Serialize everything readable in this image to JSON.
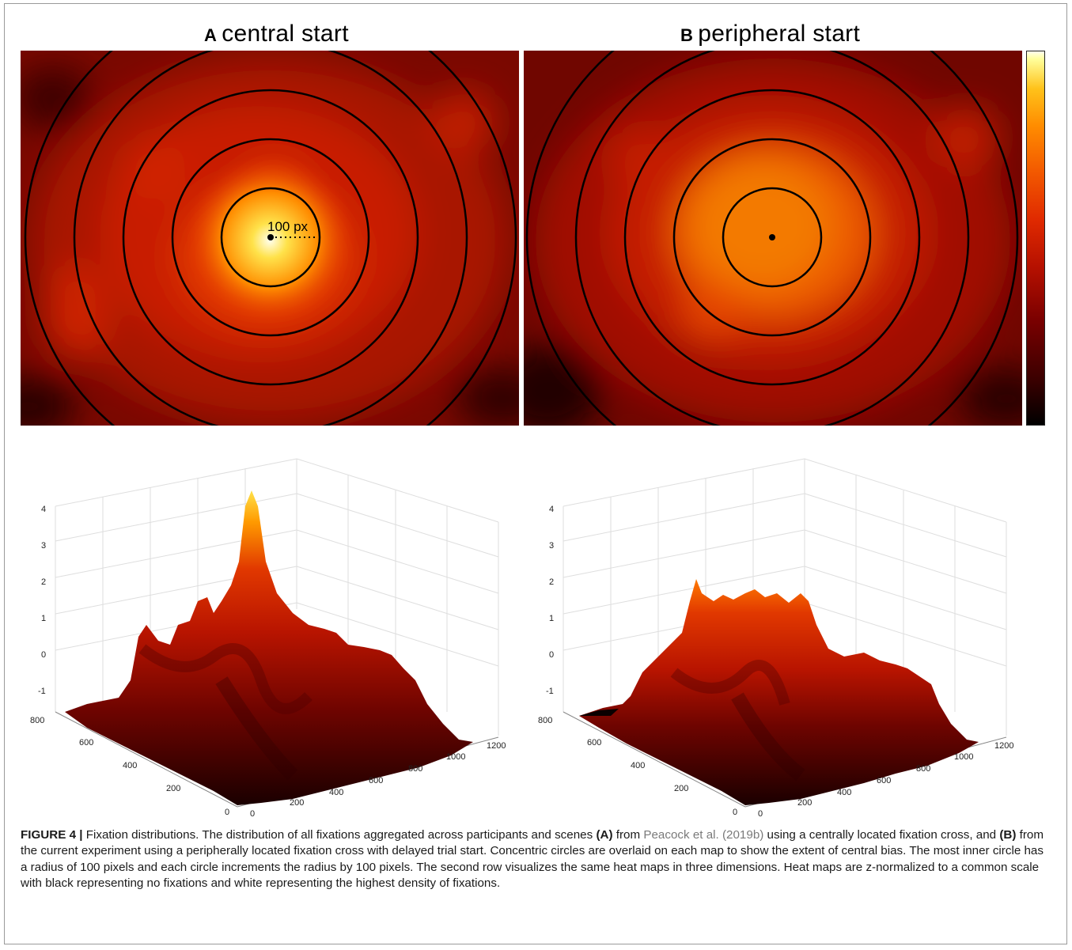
{
  "panels": [
    {
      "letter": "A",
      "title": "central start",
      "annotation": "100 px"
    },
    {
      "letter": "B",
      "title": "peripheral start"
    }
  ],
  "colors": {
    "black": "#000000",
    "dark_red": "#7a0000",
    "red": "#d01e00",
    "orange": "#ff8c00",
    "yellow": "#ffe24a",
    "white": "#ffffee"
  },
  "surface_axes": {
    "z_ticks": [
      "4",
      "3",
      "2",
      "1",
      "0",
      "-1"
    ],
    "y_ticks": [
      "800",
      "600",
      "400",
      "200",
      "0"
    ],
    "x_ticks": [
      "0",
      "200",
      "400",
      "600",
      "800",
      "1000",
      "1200"
    ]
  },
  "chart_data": [
    {
      "type": "heatmap",
      "title": "central start",
      "colorscale": "hot",
      "circle_radii_px": [
        100,
        200,
        300,
        400,
        500
      ],
      "peak": "center"
    },
    {
      "type": "heatmap",
      "title": "peripheral start",
      "colorscale": "hot",
      "circle_radii_px": [
        100,
        200,
        300,
        400,
        500
      ],
      "peak": "broad center"
    },
    {
      "type": "surface",
      "z_range": [
        -1,
        4
      ],
      "x_range": [
        0,
        1200
      ],
      "y_range": [
        0,
        800
      ],
      "peak_z": 3.4
    },
    {
      "type": "surface",
      "z_range": [
        -1,
        4
      ],
      "x_range": [
        0,
        1200
      ],
      "y_range": [
        0,
        800
      ],
      "peak_z": 1.7
    }
  ],
  "caption": {
    "figure_label": "FIGURE 4 |",
    "part1": " Fixation distributions. The distribution of all fixations aggregated across participants and scenes ",
    "a_label": "(A)",
    "part2": " from ",
    "ref": "Peacock et al. (2019b)",
    "part3": " using a centrally located fixation cross, and ",
    "b_label": "(B)",
    "part4": " from the current experiment using a peripherally located fixation cross with delayed trial start. Concentric circles are overlaid on each map to show the extent of central bias. The most inner circle has a radius of 100 pixels and each circle increments the radius by 100 pixels. The second row visualizes the same heat maps in three dimensions. Heat maps are z-normalized to a common scale with black representing no fixations and white representing the highest density of fixations."
  }
}
